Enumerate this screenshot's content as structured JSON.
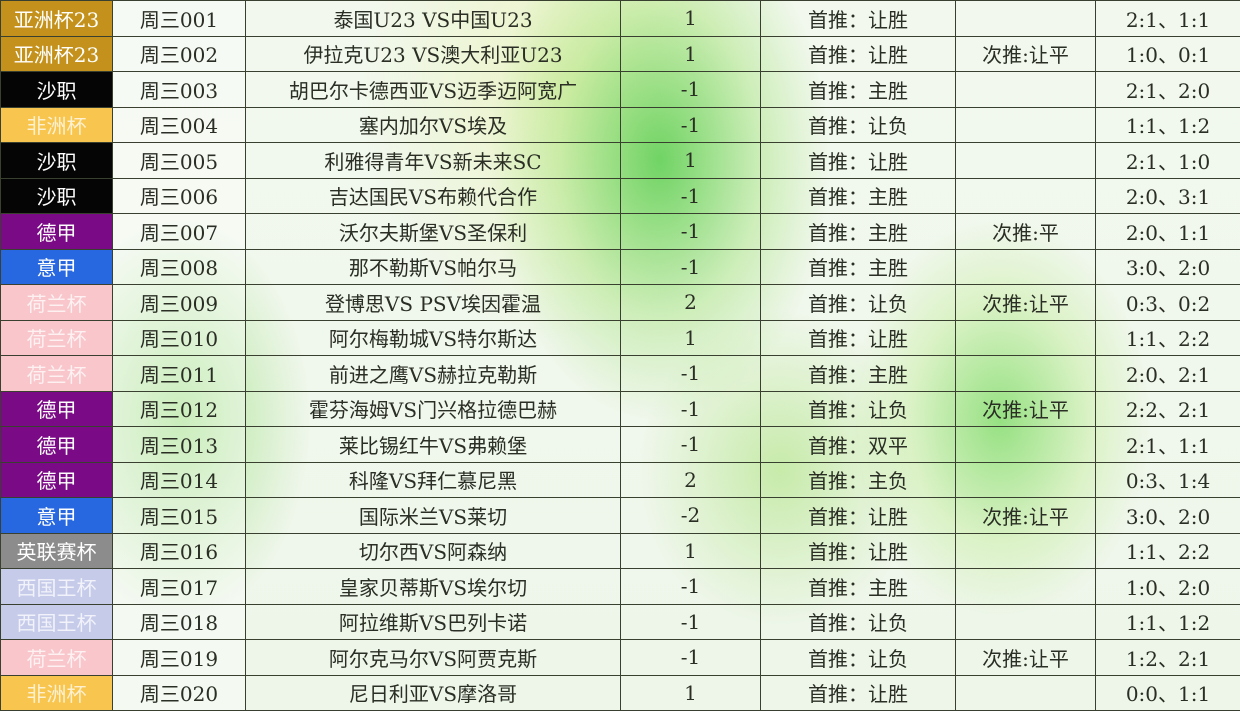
{
  "colors": {
    "亚洲杯23": "#c4921c",
    "沙职": "#050505",
    "非洲杯": "#f8c64e",
    "德甲": "#7b0a86",
    "意甲": "#2768e0",
    "荷兰杯": "#f8c6cb",
    "英联赛杯": "#8c8c8c",
    "西国王杯": "#c6cbea"
  },
  "faded": [
    "非洲杯",
    "荷兰杯",
    "西国王杯"
  ],
  "rows": [
    {
      "league": "亚洲杯23",
      "code": "周三001",
      "match": "泰国U23 VS中国U23",
      "handicap": "1",
      "first": "首推：让胜",
      "second": "",
      "score": "2:1、1:1"
    },
    {
      "league": "亚洲杯23",
      "code": "周三002",
      "match": "伊拉克U23 VS澳大利亚U23",
      "handicap": "1",
      "first": "首推：让胜",
      "second": "次推:让平",
      "score": "1:0、0:1"
    },
    {
      "league": "沙职",
      "code": "周三003",
      "match": "胡巴尔卡德西亚VS迈季迈阿宽广",
      "handicap": "-1",
      "first": "首推：主胜",
      "second": "",
      "score": "2:1、2:0"
    },
    {
      "league": "非洲杯",
      "code": "周三004",
      "match": "塞内加尔VS埃及",
      "handicap": "-1",
      "first": "首推：让负",
      "second": "",
      "score": "1:1、1:2"
    },
    {
      "league": "沙职",
      "code": "周三005",
      "match": "利雅得青年VS新未来SC",
      "handicap": "1",
      "first": "首推：让胜",
      "second": "",
      "score": "2:1、1:0"
    },
    {
      "league": "沙职",
      "code": "周三006",
      "match": "吉达国民VS布赖代合作",
      "handicap": "-1",
      "first": "首推：主胜",
      "second": "",
      "score": "2:0、3:1"
    },
    {
      "league": "德甲",
      "code": "周三007",
      "match": "沃尔夫斯堡VS圣保利",
      "handicap": "-1",
      "first": "首推：主胜",
      "second": "次推:平",
      "score": "2:0、1:1"
    },
    {
      "league": "意甲",
      "code": "周三008",
      "match": "那不勒斯VS帕尔马",
      "handicap": "-1",
      "first": "首推：主胜",
      "second": "",
      "score": "3:0、2:0"
    },
    {
      "league": "荷兰杯",
      "code": "周三009",
      "match": "登博思VS PSV埃因霍温",
      "handicap": "2",
      "first": "首推：让负",
      "second": "次推:让平",
      "score": "0:3、0:2"
    },
    {
      "league": "荷兰杯",
      "code": "周三010",
      "match": "阿尔梅勒城VS特尔斯达",
      "handicap": "1",
      "first": "首推：让胜",
      "second": "",
      "score": "1:1、2:2"
    },
    {
      "league": "荷兰杯",
      "code": "周三011",
      "match": "前进之鹰VS赫拉克勒斯",
      "handicap": "-1",
      "first": "首推：主胜",
      "second": "",
      "score": "2:0、2:1"
    },
    {
      "league": "德甲",
      "code": "周三012",
      "match": "霍芬海姆VS门兴格拉德巴赫",
      "handicap": "-1",
      "first": "首推：让负",
      "second": "次推:让平",
      "score": "2:2、2:1"
    },
    {
      "league": "德甲",
      "code": "周三013",
      "match": "莱比锡红牛VS弗赖堡",
      "handicap": "-1",
      "first": "首推：双平",
      "second": "",
      "score": "2:1、1:1"
    },
    {
      "league": "德甲",
      "code": "周三014",
      "match": "科隆VS拜仁慕尼黑",
      "handicap": "2",
      "first": "首推：主负",
      "second": "",
      "score": "0:3、1:4"
    },
    {
      "league": "意甲",
      "code": "周三015",
      "match": "国际米兰VS莱切",
      "handicap": "-2",
      "first": "首推：让胜",
      "second": "次推:让平",
      "score": "3:0、2:0"
    },
    {
      "league": "英联赛杯",
      "code": "周三016",
      "match": "切尔西VS阿森纳",
      "handicap": "1",
      "first": "首推：让胜",
      "second": "",
      "score": "1:1、2:2"
    },
    {
      "league": "西国王杯",
      "code": "周三017",
      "match": "皇家贝蒂斯VS埃尔切",
      "handicap": "-1",
      "first": "首推：主胜",
      "second": "",
      "score": "1:0、2:0"
    },
    {
      "league": "西国王杯",
      "code": "周三018",
      "match": "阿拉维斯VS巴列卡诺",
      "handicap": "-1",
      "first": "首推：让负",
      "second": "",
      "score": "1:1、1:2"
    },
    {
      "league": "荷兰杯",
      "code": "周三019",
      "match": "阿尔克马尔VS阿贾克斯",
      "handicap": "-1",
      "first": "首推：让负",
      "second": "次推:让平",
      "score": "1:2、2:1"
    },
    {
      "league": "非洲杯",
      "code": "周三020",
      "match": "尼日利亚VS摩洛哥",
      "handicap": "1",
      "first": "首推：让胜",
      "second": "",
      "score": "0:0、1:1"
    }
  ]
}
